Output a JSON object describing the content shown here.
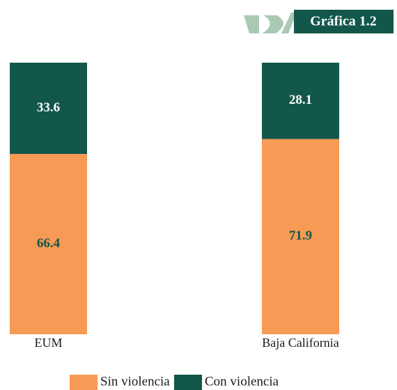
{
  "chart_data": {
    "type": "stacked_bar",
    "title": "Gráfica 1.2",
    "categories": [
      "EUM",
      "Baja California"
    ],
    "series": [
      {
        "name": "Sin violencia",
        "color": "#f79a55",
        "label_color": "#12574a",
        "values": [
          66.4,
          71.9
        ]
      },
      {
        "name": "Con violencia",
        "color": "#12574a",
        "label_color": "#ffffff",
        "values": [
          33.6,
          28.1
        ]
      }
    ],
    "ylim": [
      0,
      100
    ]
  }
}
